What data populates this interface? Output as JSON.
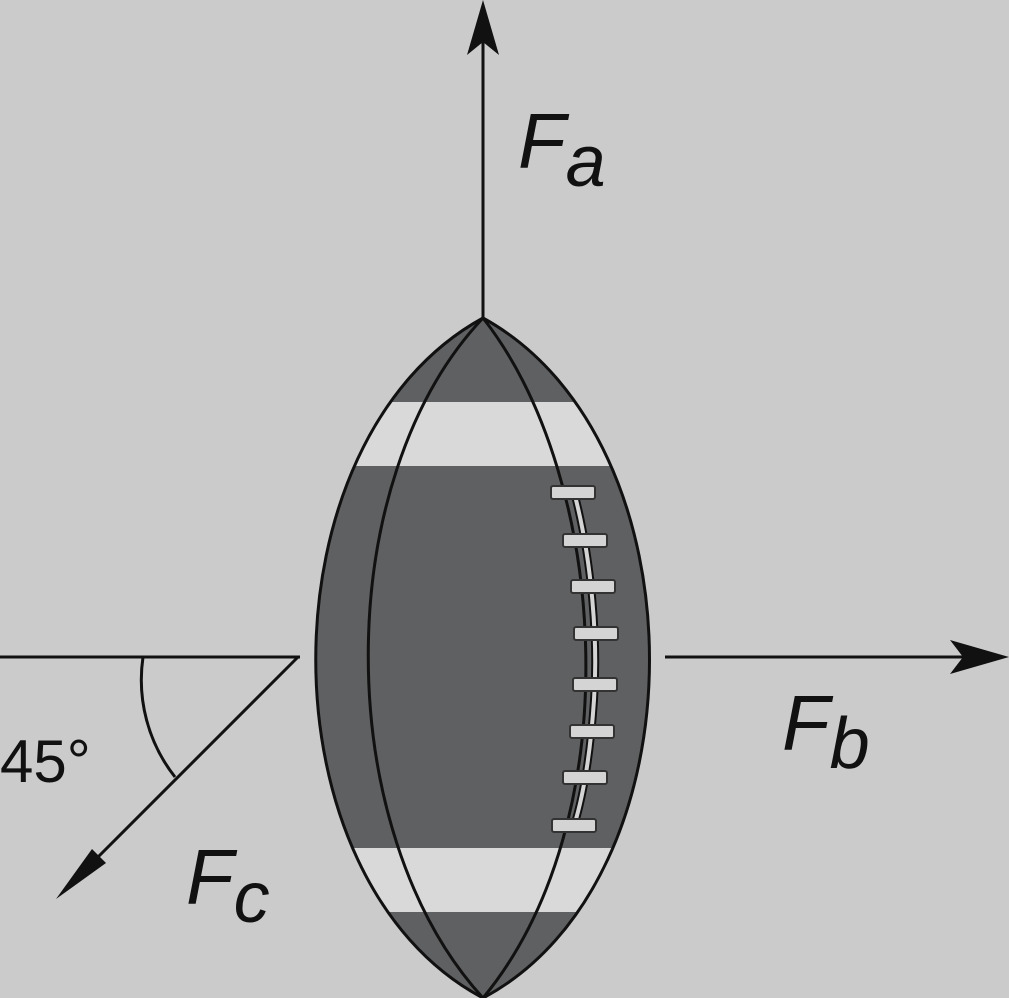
{
  "colors": {
    "background": "#cbcbcb",
    "ball_leather": "#5f6062",
    "stripe": "#d9d9d9",
    "lace": "#d4d4d4",
    "line": "#111111"
  },
  "forces": {
    "a": {
      "symbol": "F",
      "subscript": "a"
    },
    "b": {
      "symbol": "F",
      "subscript": "b"
    },
    "c": {
      "symbol": "F",
      "subscript": "c"
    }
  },
  "angle_label": "45°"
}
